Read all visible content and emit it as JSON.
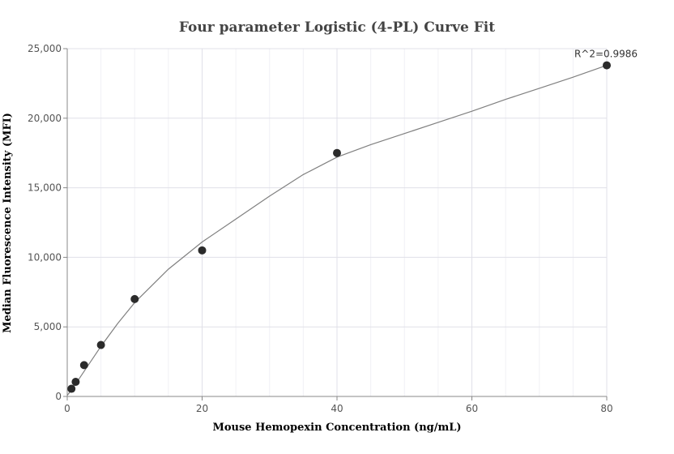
{
  "chart_data": {
    "type": "scatter",
    "title": "Four parameter Logistic (4-PL) Curve Fit",
    "xlabel": "Mouse Hemopexin Concentration (ng/mL)",
    "ylabel": "Median Fluorescence Intensity (MFI)",
    "xlim": [
      0,
      80
    ],
    "ylim": [
      0,
      25000
    ],
    "x_ticks": [
      0,
      20,
      40,
      60,
      80
    ],
    "x_tick_labels": [
      "0",
      "20",
      "40",
      "60",
      "80"
    ],
    "y_ticks": [
      0,
      5000,
      10000,
      15000,
      20000,
      25000
    ],
    "y_tick_labels": [
      "0",
      "5,000",
      "10,000",
      "15,000",
      "20,000",
      "25,000"
    ],
    "grid": true,
    "series": [
      {
        "points": [
          {
            "x": 0.625,
            "y": 550
          },
          {
            "x": 1.25,
            "y": 1050
          },
          {
            "x": 2.5,
            "y": 2250
          },
          {
            "x": 5,
            "y": 3700
          },
          {
            "x": 10,
            "y": 7000
          },
          {
            "x": 20,
            "y": 10500
          },
          {
            "x": 40,
            "y": 17500
          },
          {
            "x": 80,
            "y": 23800
          }
        ]
      }
    ],
    "fit_curve": {
      "type": "4PL",
      "points": [
        {
          "x": 0,
          "y": 80
        },
        {
          "x": 0.625,
          "y": 450
        },
        {
          "x": 1.25,
          "y": 900
        },
        {
          "x": 2.5,
          "y": 1800
        },
        {
          "x": 5,
          "y": 3600
        },
        {
          "x": 7.5,
          "y": 5250
        },
        {
          "x": 10,
          "y": 6750
        },
        {
          "x": 15,
          "y": 9150
        },
        {
          "x": 20,
          "y": 11100
        },
        {
          "x": 25,
          "y": 12750
        },
        {
          "x": 30,
          "y": 14400
        },
        {
          "x": 35,
          "y": 15950
        },
        {
          "x": 40,
          "y": 17200
        },
        {
          "x": 45,
          "y": 18100
        },
        {
          "x": 50,
          "y": 18900
        },
        {
          "x": 55,
          "y": 19700
        },
        {
          "x": 60,
          "y": 20500
        },
        {
          "x": 65,
          "y": 21350
        },
        {
          "x": 70,
          "y": 22150
        },
        {
          "x": 75,
          "y": 22950
        },
        {
          "x": 80,
          "y": 23800
        }
      ]
    },
    "annotations": [
      {
        "text": "R^2=0.9986",
        "x": 80,
        "y": 23800
      }
    ]
  }
}
